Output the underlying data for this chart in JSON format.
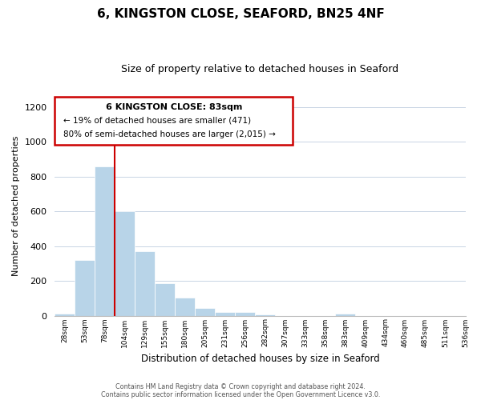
{
  "title": "6, KINGSTON CLOSE, SEAFORD, BN25 4NF",
  "subtitle": "Size of property relative to detached houses in Seaford",
  "xlabel": "Distribution of detached houses by size in Seaford",
  "ylabel": "Number of detached properties",
  "bar_values": [
    10,
    320,
    860,
    600,
    370,
    185,
    105,
    45,
    20,
    20,
    5,
    0,
    0,
    0,
    10,
    0,
    0,
    0,
    0,
    0
  ],
  "bar_color": "#b8d4e8",
  "x_labels": [
    "28sqm",
    "53sqm",
    "78sqm",
    "104sqm",
    "129sqm",
    "155sqm",
    "180sqm",
    "205sqm",
    "231sqm",
    "256sqm",
    "282sqm",
    "307sqm",
    "333sqm",
    "358sqm",
    "383sqm",
    "409sqm",
    "434sqm",
    "460sqm",
    "485sqm",
    "511sqm",
    "536sqm"
  ],
  "ylim": [
    0,
    1260
  ],
  "yticks": [
    0,
    200,
    400,
    600,
    800,
    1000,
    1200
  ],
  "vline_x_index": 2,
  "vline_color": "#cc0000",
  "annotation_title": "6 KINGSTON CLOSE: 83sqm",
  "annotation_line1": "← 19% of detached houses are smaller (471)",
  "annotation_line2": "80% of semi-detached houses are larger (2,015) →",
  "footer_line1": "Contains HM Land Registry data © Crown copyright and database right 2024.",
  "footer_line2": "Contains public sector information licensed under the Open Government Licence v3.0.",
  "background_color": "#ffffff",
  "grid_color": "#c8d4e4"
}
